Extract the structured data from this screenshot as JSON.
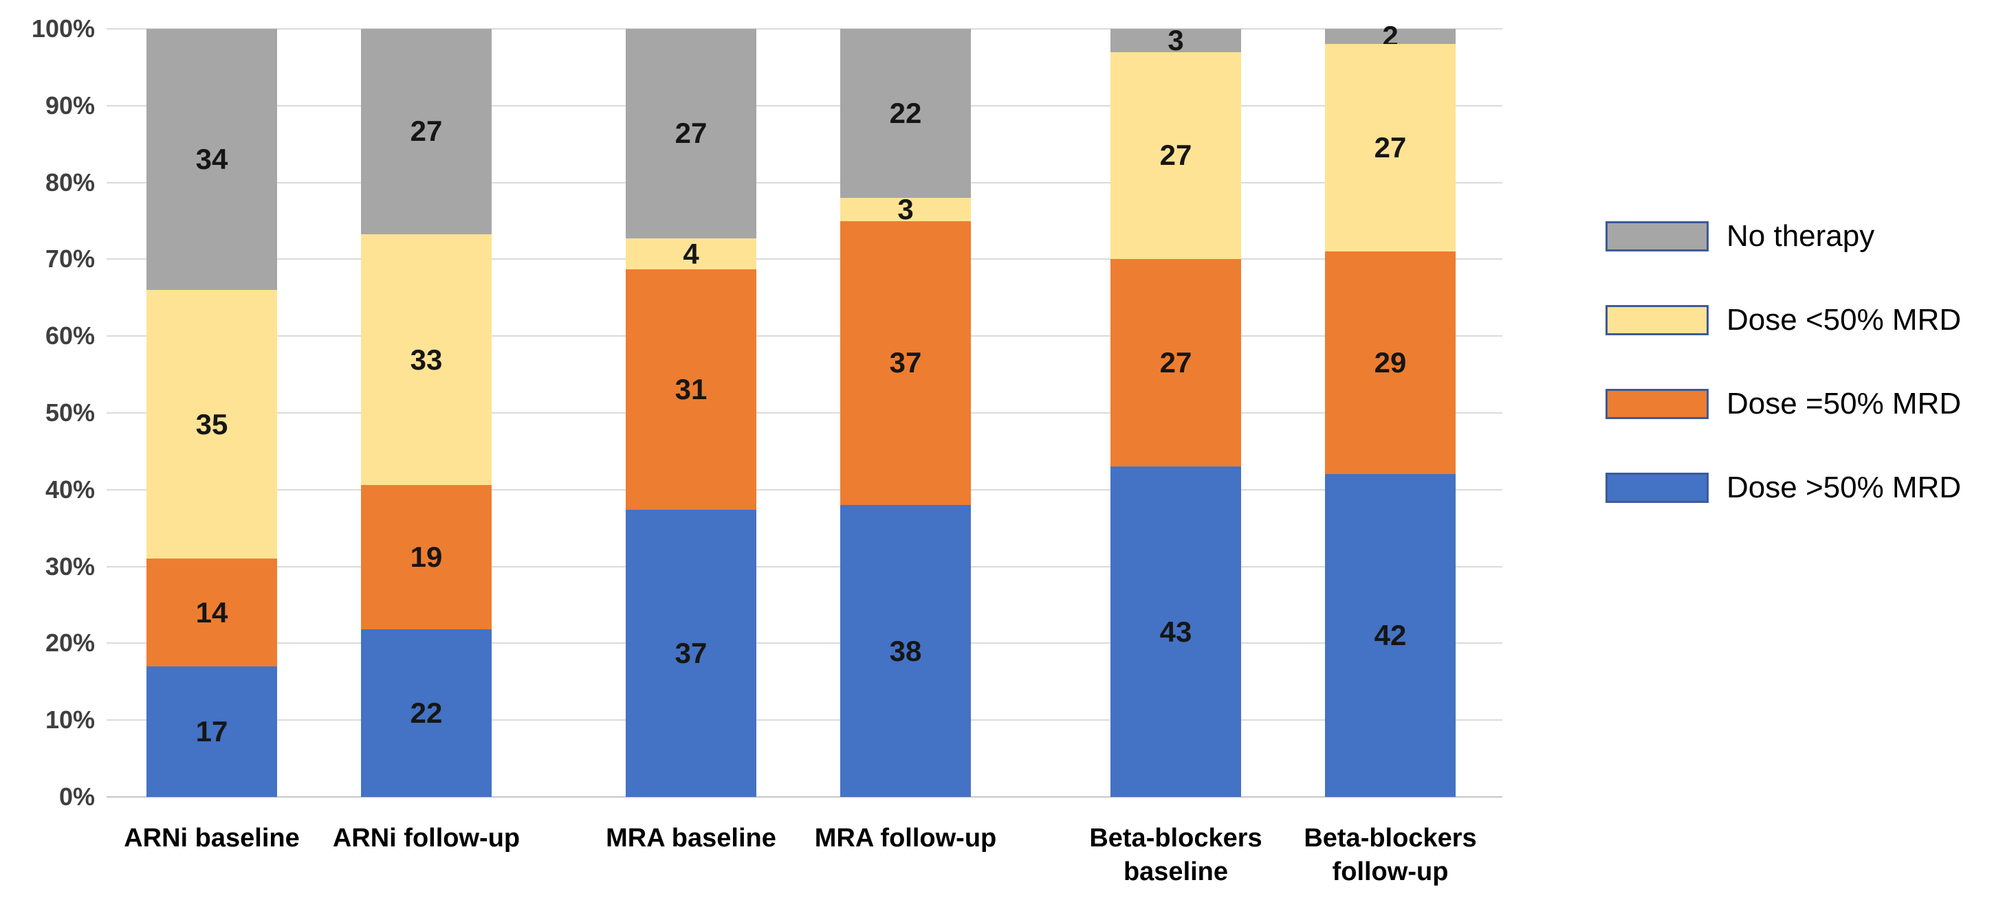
{
  "chart_data": {
    "type": "bar",
    "variant": "100%-stacked-column",
    "title": "",
    "xlabel": "",
    "ylabel": "",
    "grid": true,
    "categories": [
      "ARNi baseline",
      "ARNi follow-up",
      "MRA baseline",
      "MRA follow-up",
      "Beta-blockers baseline",
      "Beta-blockers follow-up"
    ],
    "series": [
      {
        "name": "Dose >50% MRD",
        "color": "#4472C4",
        "values": [
          17,
          22,
          37,
          38,
          43,
          42
        ]
      },
      {
        "name": "Dose =50% MRD",
        "color": "#ED7D31",
        "values": [
          14,
          19,
          31,
          37,
          27,
          29
        ]
      },
      {
        "name": "Dose <50% MRD",
        "color": "#FFE394",
        "values": [
          35,
          33,
          4,
          3,
          27,
          27
        ]
      },
      {
        "name": "No therapy",
        "color": "#A6A6A6",
        "values": [
          34,
          27,
          27,
          22,
          3,
          2
        ]
      }
    ],
    "y_axis": {
      "min": 0,
      "max": 100,
      "tick_labels": [
        "0%",
        "10%",
        "20%",
        "30%",
        "40%",
        "50%",
        "60%",
        "70%",
        "80%",
        "90%",
        "100%"
      ]
    },
    "legend": {
      "position": "right",
      "order_top_to_bottom": [
        "No therapy",
        "Dose <50% MRD",
        "Dose =50% MRD",
        "Dose >50% MRD"
      ],
      "swatch_border_color": "#3D5A98"
    }
  }
}
